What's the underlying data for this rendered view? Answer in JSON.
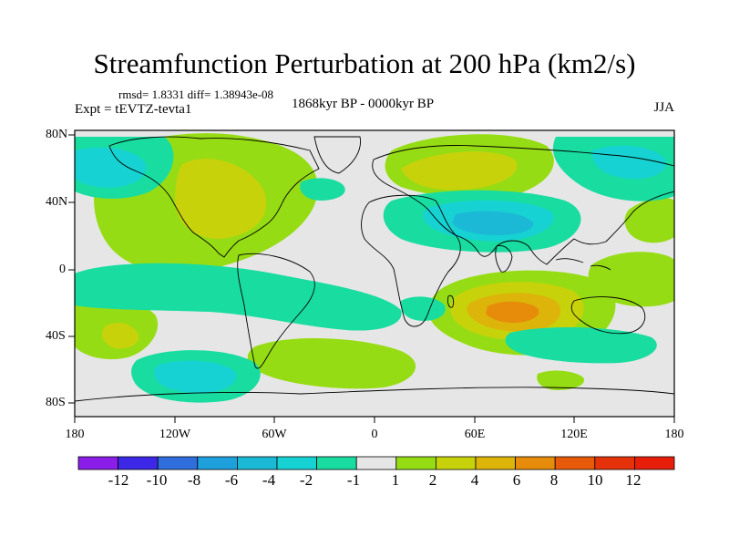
{
  "title": "Streamfunction Perturbation at 200 hPa (km2/s)",
  "stats": "rmsd= 1.8331 diff= 1.38943e-08",
  "expt": "Expt = tEVTZ-tevta1",
  "period": "1868kyr BP - 0000kyr BP",
  "season": "JJA",
  "map": {
    "y_labels": [
      "80N",
      "40N",
      "0",
      "40S",
      "80S"
    ],
    "x_labels": [
      "180",
      "120W",
      "60W",
      "0",
      "60E",
      "120E",
      "180"
    ]
  },
  "colorbar": {
    "labels": [
      "-12",
      "-10",
      "-8",
      "-6",
      "-4",
      "-2",
      "-1",
      "1",
      "2",
      "4",
      "6",
      "8",
      "10",
      "12"
    ],
    "colors": [
      "#8a1ee8",
      "#3c28e6",
      "#2f6edc",
      "#1ea0dc",
      "#1cb9d7",
      "#17d2d2",
      "#19dca0",
      "#e6e6e6",
      "#96dc14",
      "#c8d20a",
      "#dcb40a",
      "#e68c0a",
      "#e65a0a",
      "#e6320a",
      "#e61e0a"
    ]
  },
  "colors": {
    "neutral": "#e6e6e6",
    "level_2": "#96dc14",
    "level_4": "#c8d20a",
    "level_6": "#dcb40a",
    "level_8": "#e68c0a",
    "neg_1": "#19dca0",
    "neg_2": "#17d2d2",
    "neg_4": "#1cb9d7"
  }
}
